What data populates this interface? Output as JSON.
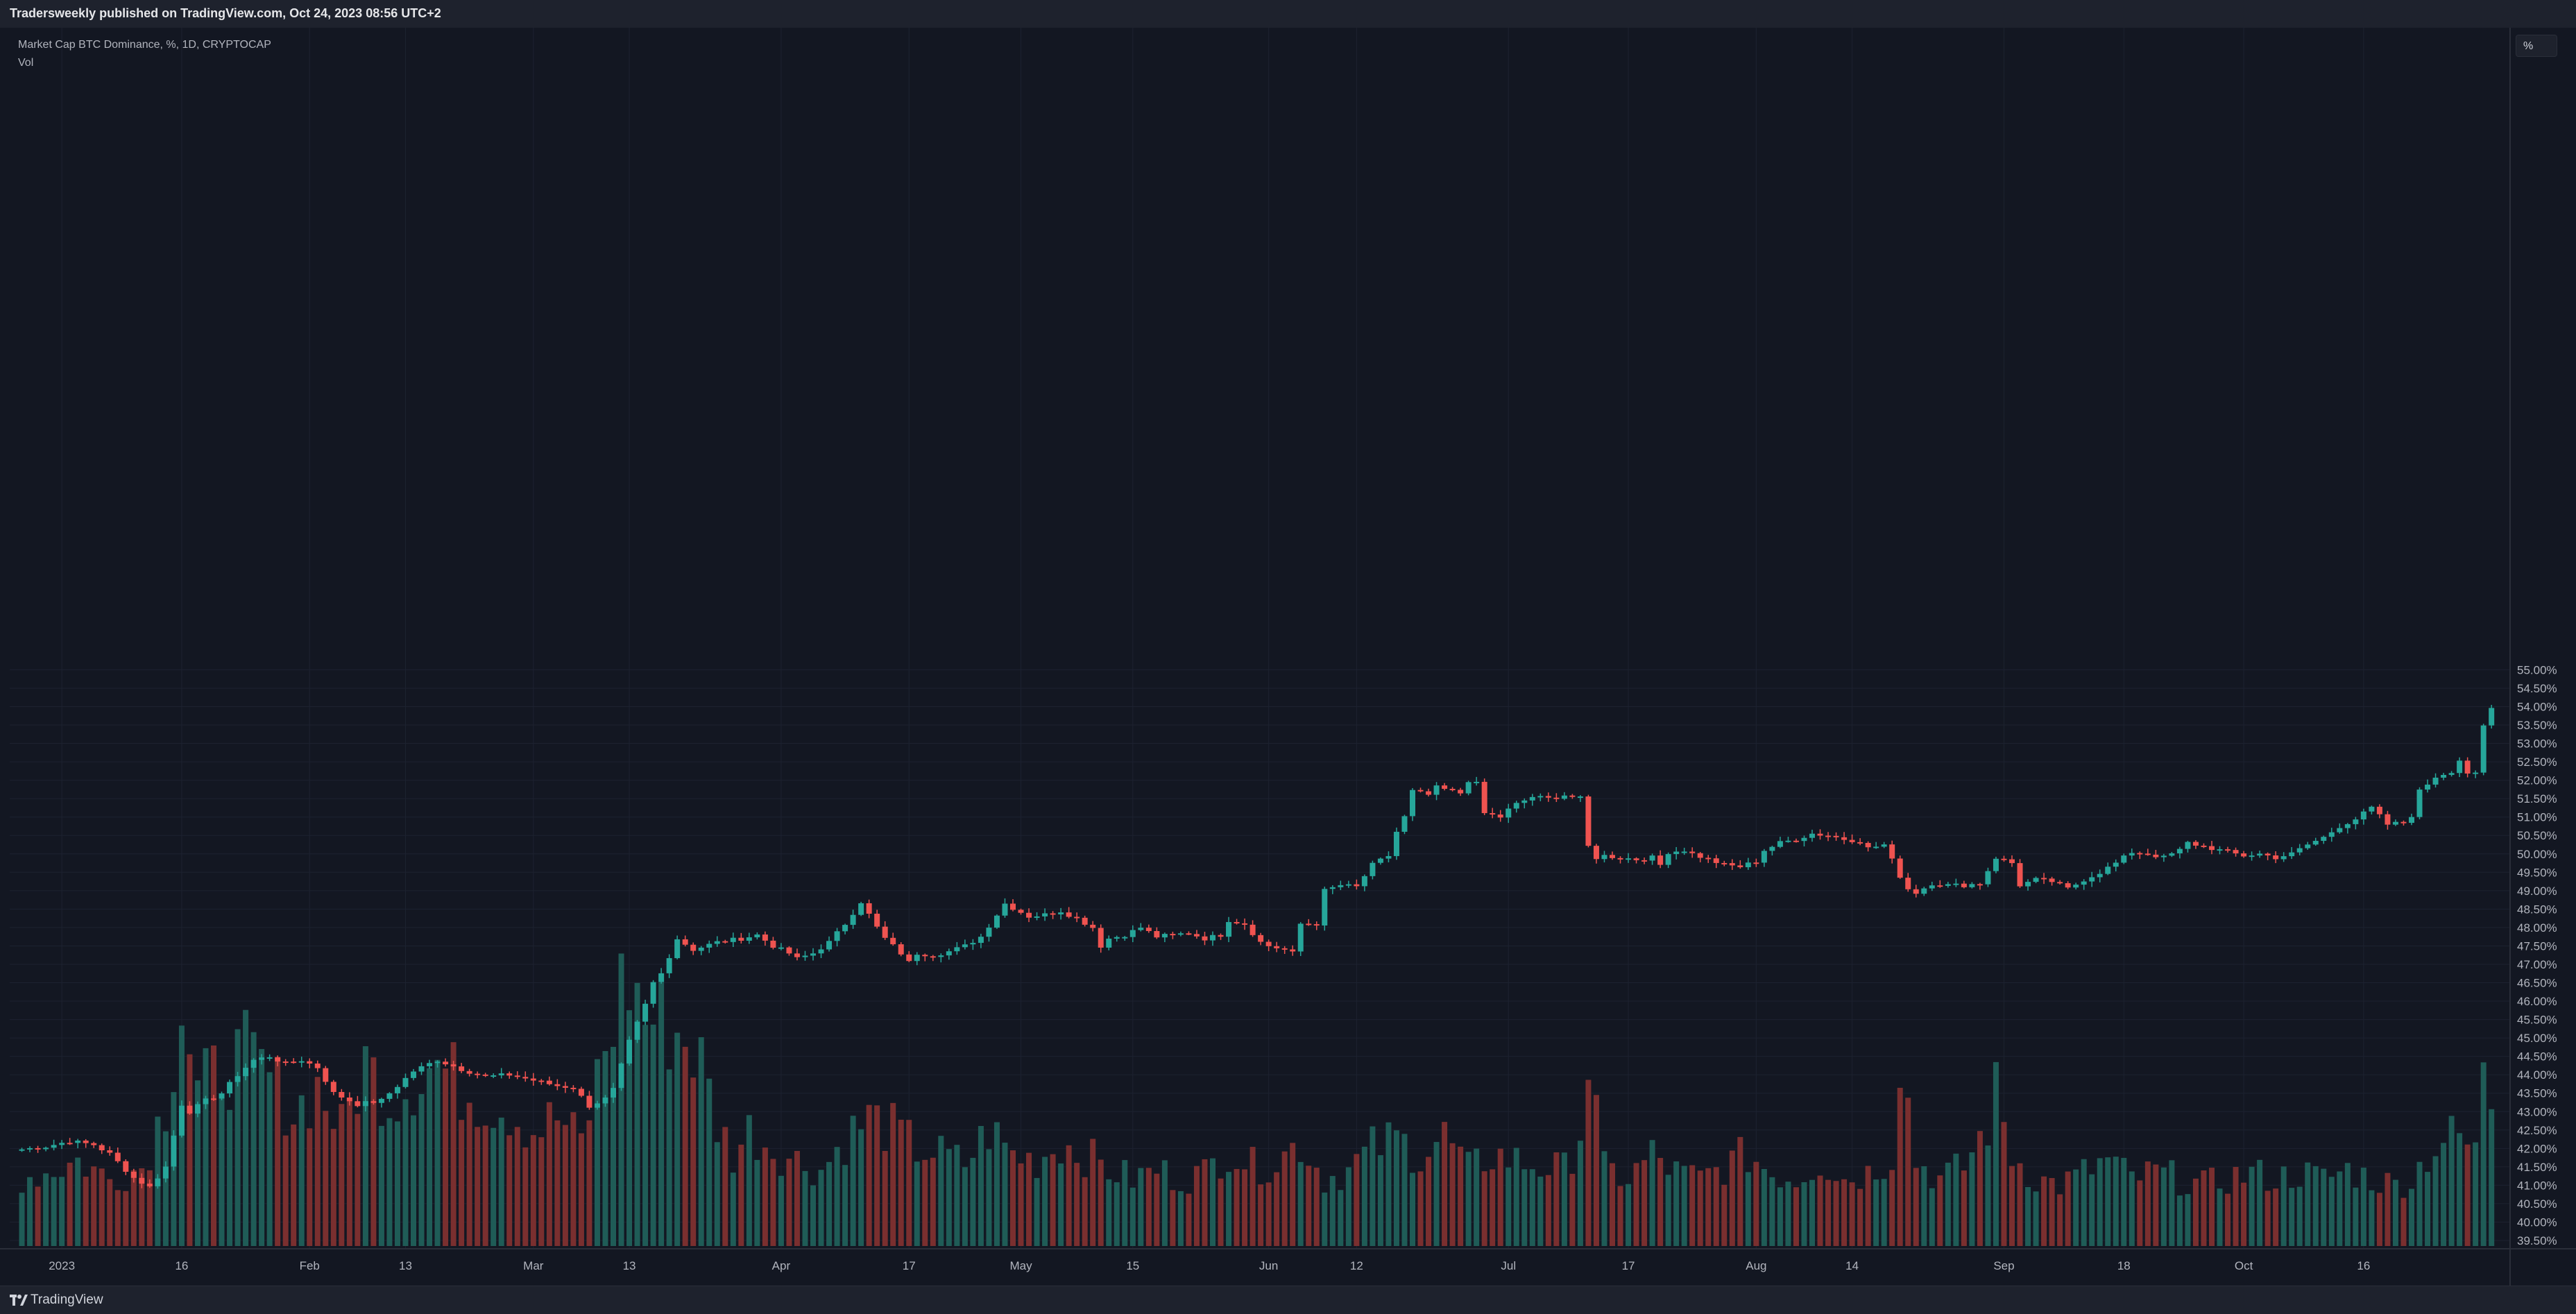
{
  "header": {
    "publish_text": "Tradersweekly published on TradingView.com, Oct 24, 2023 08:56 UTC+2"
  },
  "legend": {
    "symbol_line": "Market Cap BTC Dominance, %, 1D, CRYPTOCAP",
    "volume_label": "Vol"
  },
  "price_scale": {
    "unit_label": "%"
  },
  "footer": {
    "brand": "TradingView"
  },
  "colors": {
    "up": "#26a69a",
    "down": "#ef5350",
    "up_volume": "#1f5c57",
    "down_volume": "#7a2f2f",
    "background": "#131722",
    "grid": "#1d2230",
    "text": "#b2b5be"
  },
  "chart_data": {
    "type": "candlestick",
    "title": "Market Cap BTC Dominance, %, 1D, CRYPTOCAP",
    "ylabel": "%",
    "ylim": [
      39.4,
      55.5
    ],
    "y_ticks": [
      39.5,
      40.0,
      40.5,
      41.0,
      41.5,
      42.0,
      42.5,
      43.0,
      43.5,
      44.0,
      44.5,
      45.0,
      45.5,
      46.0,
      46.5,
      47.0,
      47.5,
      48.0,
      48.5,
      49.0,
      49.5,
      50.0,
      50.5,
      51.0,
      51.5,
      52.0,
      52.5,
      53.0,
      53.5,
      54.0,
      54.5,
      55.0
    ],
    "y_tick_labels": [
      "39.50%",
      "40.00%",
      "40.50%",
      "41.00%",
      "41.50%",
      "42.00%",
      "42.50%",
      "43.00%",
      "43.50%",
      "44.00%",
      "44.50%",
      "45.00%",
      "45.50%",
      "46.00%",
      "46.50%",
      "47.00%",
      "47.50%",
      "48.00%",
      "48.50%",
      "49.00%",
      "49.50%",
      "50.00%",
      "50.50%",
      "51.00%",
      "51.50%",
      "52.00%",
      "52.50%",
      "53.00%",
      "53.50%",
      "54.00%",
      "54.50%",
      "55.00%"
    ],
    "x_ticks": [
      {
        "label": "2023",
        "day": 6
      },
      {
        "label": "16",
        "day": 21
      },
      {
        "label": "Feb",
        "day": 37
      },
      {
        "label": "13",
        "day": 49
      },
      {
        "label": "Mar",
        "day": 65
      },
      {
        "label": "13",
        "day": 77
      },
      {
        "label": "Apr",
        "day": 96
      },
      {
        "label": "17",
        "day": 112
      },
      {
        "label": "May",
        "day": 126
      },
      {
        "label": "15",
        "day": 140
      },
      {
        "label": "Jun",
        "day": 157
      },
      {
        "label": "12",
        "day": 168
      },
      {
        "label": "Jul",
        "day": 187
      },
      {
        "label": "17",
        "day": 202
      },
      {
        "label": "Aug",
        "day": 218
      },
      {
        "label": "14",
        "day": 230
      },
      {
        "label": "Sep",
        "day": 249
      },
      {
        "label": "18",
        "day": 264
      },
      {
        "label": "Oct",
        "day": 279
      },
      {
        "label": "16",
        "day": 294
      }
    ],
    "series_close": [
      [
        0,
        41.95
      ],
      [
        4,
        42.05
      ],
      [
        7,
        42.2
      ],
      [
        10,
        42.1
      ],
      [
        12,
        41.85
      ],
      [
        15,
        41.2
      ],
      [
        17,
        40.95
      ],
      [
        19,
        41.5
      ],
      [
        21,
        43.2
      ],
      [
        22,
        43.0
      ],
      [
        24,
        43.3
      ],
      [
        26,
        43.5
      ],
      [
        28,
        44.0
      ],
      [
        30,
        44.4
      ],
      [
        32,
        44.5
      ],
      [
        34,
        44.3
      ],
      [
        36,
        44.4
      ],
      [
        38,
        44.2
      ],
      [
        40,
        43.5
      ],
      [
        43,
        43.2
      ],
      [
        46,
        43.3
      ],
      [
        48,
        43.7
      ],
      [
        50,
        44.1
      ],
      [
        53,
        44.4
      ],
      [
        56,
        44.15
      ],
      [
        59,
        43.95
      ],
      [
        62,
        44.0
      ],
      [
        65,
        43.85
      ],
      [
        68,
        43.7
      ],
      [
        70,
        43.65
      ],
      [
        72,
        43.15
      ],
      [
        74,
        43.35
      ],
      [
        75,
        43.6
      ],
      [
        77,
        44.9
      ],
      [
        78,
        45.4
      ],
      [
        79,
        45.9
      ],
      [
        80,
        46.5
      ],
      [
        81,
        46.75
      ],
      [
        83,
        47.7
      ],
      [
        85,
        47.4
      ],
      [
        88,
        47.6
      ],
      [
        91,
        47.7
      ],
      [
        93,
        47.8
      ],
      [
        95,
        47.5
      ],
      [
        97,
        47.3
      ],
      [
        98,
        47.15
      ],
      [
        100,
        47.3
      ],
      [
        102,
        47.6
      ],
      [
        104,
        48.1
      ],
      [
        106,
        48.7
      ],
      [
        108,
        48.0
      ],
      [
        109,
        47.7
      ],
      [
        111,
        47.3
      ],
      [
        112,
        47.05
      ],
      [
        113,
        47.3
      ],
      [
        115,
        47.25
      ],
      [
        117,
        47.35
      ],
      [
        119,
        47.5
      ],
      [
        121,
        47.75
      ],
      [
        122,
        48.05
      ],
      [
        124,
        48.65
      ],
      [
        127,
        48.3
      ],
      [
        129,
        48.35
      ],
      [
        131,
        48.45
      ],
      [
        133,
        48.25
      ],
      [
        135,
        48.0
      ],
      [
        136,
        47.5
      ],
      [
        137,
        47.7
      ],
      [
        139,
        47.8
      ],
      [
        141,
        48.0
      ],
      [
        143,
        47.75
      ],
      [
        145,
        47.8
      ],
      [
        147,
        47.85
      ],
      [
        149,
        47.7
      ],
      [
        151,
        47.8
      ],
      [
        152,
        48.2
      ],
      [
        154,
        48.1
      ],
      [
        156,
        47.6
      ],
      [
        157,
        47.5
      ],
      [
        159,
        47.4
      ],
      [
        160,
        47.3
      ],
      [
        161,
        48.1
      ],
      [
        163,
        48.1
      ],
      [
        164,
        49.0
      ],
      [
        166,
        49.15
      ],
      [
        168,
        49.1
      ],
      [
        169,
        49.4
      ],
      [
        170,
        49.7
      ],
      [
        172,
        49.95
      ],
      [
        173,
        50.6
      ],
      [
        174,
        51.0
      ],
      [
        175,
        51.7
      ],
      [
        177,
        51.6
      ],
      [
        178,
        51.8
      ],
      [
        179,
        51.75
      ],
      [
        181,
        51.65
      ],
      [
        182,
        52.0
      ],
      [
        183,
        51.9
      ],
      [
        184,
        51.1
      ],
      [
        186,
        51.0
      ],
      [
        187,
        51.2
      ],
      [
        188,
        51.35
      ],
      [
        190,
        51.55
      ],
      [
        192,
        51.5
      ],
      [
        194,
        51.6
      ],
      [
        196,
        51.5
      ],
      [
        197,
        50.2
      ],
      [
        198,
        49.9
      ],
      [
        199,
        49.95
      ],
      [
        201,
        49.9
      ],
      [
        203,
        49.85
      ],
      [
        205,
        49.9
      ],
      [
        206,
        49.7
      ],
      [
        207,
        50.05
      ],
      [
        209,
        50.1
      ],
      [
        210,
        50.0
      ],
      [
        212,
        49.85
      ],
      [
        214,
        49.7
      ],
      [
        216,
        49.65
      ],
      [
        218,
        49.8
      ],
      [
        219,
        50.1
      ],
      [
        221,
        50.3
      ],
      [
        223,
        50.4
      ],
      [
        225,
        50.55
      ],
      [
        227,
        50.5
      ],
      [
        229,
        50.4
      ],
      [
        231,
        50.35
      ],
      [
        232,
        50.15
      ],
      [
        234,
        50.25
      ],
      [
        236,
        49.4
      ],
      [
        237,
        49.05
      ],
      [
        238,
        48.95
      ],
      [
        240,
        49.2
      ],
      [
        242,
        49.15
      ],
      [
        244,
        49.15
      ],
      [
        246,
        49.2
      ],
      [
        248,
        49.9
      ],
      [
        250,
        49.75
      ],
      [
        251,
        49.15
      ],
      [
        253,
        49.3
      ],
      [
        255,
        49.25
      ],
      [
        257,
        49.05
      ],
      [
        259,
        49.3
      ],
      [
        261,
        49.5
      ],
      [
        263,
        49.75
      ],
      [
        265,
        50.05
      ],
      [
        267,
        50.0
      ],
      [
        269,
        49.9
      ],
      [
        271,
        50.1
      ],
      [
        272,
        50.3
      ],
      [
        274,
        50.2
      ],
      [
        276,
        50.1
      ],
      [
        278,
        50.0
      ],
      [
        279,
        49.95
      ],
      [
        281,
        50.0
      ],
      [
        283,
        49.9
      ],
      [
        285,
        50.0
      ],
      [
        287,
        50.25
      ],
      [
        289,
        50.45
      ],
      [
        291,
        50.75
      ],
      [
        293,
        50.95
      ],
      [
        295,
        51.25
      ],
      [
        297,
        50.8
      ],
      [
        299,
        50.85
      ],
      [
        300,
        51.05
      ],
      [
        301,
        51.7
      ],
      [
        303,
        52.1
      ],
      [
        305,
        52.25
      ],
      [
        306,
        52.55
      ],
      [
        307,
        52.2
      ],
      [
        308,
        52.15
      ],
      [
        309,
        53.45
      ],
      [
        310,
        53.95
      ]
    ],
    "volume_ratio": [
      [
        0,
        0.22
      ],
      [
        4,
        0.24
      ],
      [
        8,
        0.28
      ],
      [
        12,
        0.22
      ],
      [
        16,
        0.26
      ],
      [
        19,
        0.47
      ],
      [
        21,
        0.8
      ],
      [
        23,
        0.5
      ],
      [
        26,
        0.58
      ],
      [
        29,
        0.62
      ],
      [
        32,
        0.55
      ],
      [
        35,
        0.44
      ],
      [
        38,
        0.52
      ],
      [
        41,
        0.38
      ],
      [
        44,
        0.6
      ],
      [
        47,
        0.48
      ],
      [
        50,
        0.55
      ],
      [
        53,
        0.6
      ],
      [
        56,
        0.52
      ],
      [
        59,
        0.48
      ],
      [
        62,
        0.45
      ],
      [
        65,
        0.38
      ],
      [
        68,
        0.42
      ],
      [
        71,
        0.34
      ],
      [
        74,
        0.65
      ],
      [
        76,
        0.84
      ],
      [
        77,
        0.88
      ],
      [
        79,
        0.75
      ],
      [
        82,
        0.72
      ],
      [
        84,
        0.68
      ],
      [
        86,
        0.6
      ],
      [
        88,
        0.4
      ],
      [
        90,
        0.3
      ],
      [
        92,
        0.38
      ],
      [
        95,
        0.32
      ],
      [
        98,
        0.28
      ],
      [
        101,
        0.25
      ],
      [
        104,
        0.35
      ],
      [
        107,
        0.42
      ],
      [
        110,
        0.38
      ],
      [
        113,
        0.32
      ],
      [
        116,
        0.3
      ],
      [
        119,
        0.27
      ],
      [
        122,
        0.38
      ],
      [
        125,
        0.3
      ],
      [
        128,
        0.28
      ],
      [
        131,
        0.34
      ],
      [
        134,
        0.3
      ],
      [
        137,
        0.25
      ],
      [
        140,
        0.22
      ],
      [
        143,
        0.25
      ],
      [
        146,
        0.22
      ],
      [
        149,
        0.24
      ],
      [
        152,
        0.32
      ],
      [
        155,
        0.26
      ],
      [
        158,
        0.28
      ],
      [
        161,
        0.34
      ],
      [
        164,
        0.22
      ],
      [
        167,
        0.25
      ],
      [
        170,
        0.32
      ],
      [
        173,
        0.35
      ],
      [
        176,
        0.3
      ],
      [
        179,
        0.36
      ],
      [
        182,
        0.25
      ],
      [
        185,
        0.3
      ],
      [
        188,
        0.28
      ],
      [
        191,
        0.26
      ],
      [
        194,
        0.25
      ],
      [
        196,
        0.38
      ],
      [
        197,
        0.6
      ],
      [
        199,
        0.25
      ],
      [
        202,
        0.22
      ],
      [
        205,
        0.3
      ],
      [
        208,
        0.24
      ],
      [
        211,
        0.22
      ],
      [
        214,
        0.26
      ],
      [
        217,
        0.3
      ],
      [
        220,
        0.24
      ],
      [
        223,
        0.22
      ],
      [
        226,
        0.28
      ],
      [
        229,
        0.22
      ],
      [
        232,
        0.24
      ],
      [
        235,
        0.3
      ],
      [
        236,
        0.65
      ],
      [
        238,
        0.28
      ],
      [
        241,
        0.22
      ],
      [
        244,
        0.26
      ],
      [
        247,
        0.4
      ],
      [
        248,
        0.5
      ],
      [
        250,
        0.3
      ],
      [
        253,
        0.22
      ],
      [
        256,
        0.2
      ],
      [
        259,
        0.24
      ],
      [
        262,
        0.28
      ],
      [
        265,
        0.22
      ],
      [
        268,
        0.24
      ],
      [
        271,
        0.22
      ],
      [
        274,
        0.2
      ],
      [
        277,
        0.22
      ],
      [
        280,
        0.24
      ],
      [
        283,
        0.22
      ],
      [
        286,
        0.24
      ],
      [
        289,
        0.22
      ],
      [
        292,
        0.25
      ],
      [
        295,
        0.22
      ],
      [
        298,
        0.2
      ],
      [
        300,
        0.22
      ],
      [
        302,
        0.3
      ],
      [
        304,
        0.35
      ],
      [
        306,
        0.36
      ],
      [
        308,
        0.3
      ],
      [
        309,
        0.65
      ],
      [
        310,
        0.5
      ]
    ]
  }
}
